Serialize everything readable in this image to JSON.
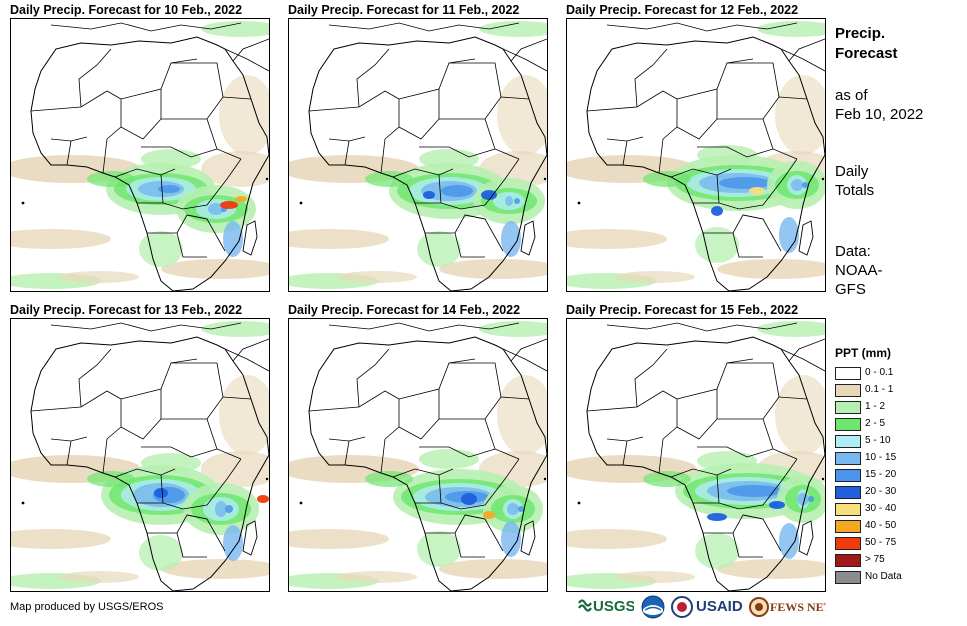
{
  "panels": [
    {
      "title": "Daily Precip. Forecast for 10 Feb., 2022"
    },
    {
      "title": "Daily Precip. Forecast for 11 Feb., 2022"
    },
    {
      "title": "Daily Precip. Forecast for 12 Feb., 2022"
    },
    {
      "title": "Daily Precip. Forecast for 13 Feb., 2022"
    },
    {
      "title": "Daily Precip. Forecast for 14 Feb., 2022"
    },
    {
      "title": "Daily Precip. Forecast for 15 Feb., 2022"
    }
  ],
  "sidebar": {
    "title_line1": "Precip.",
    "title_line2": "Forecast",
    "asof_line1": "as of",
    "asof_line2": "Feb 10, 2022",
    "totals_line1": "Daily",
    "totals_line2": "Totals",
    "source_line1": "Data:",
    "source_line2": "NOAA-",
    "source_line3": "GFS"
  },
  "legend": {
    "title": "PPT (mm)",
    "items": [
      {
        "label": "0 - 0.1",
        "color": "#ffffff"
      },
      {
        "label": "0.1 - 1",
        "color": "#e8d8bb"
      },
      {
        "label": "1 - 2",
        "color": "#b6f0b0"
      },
      {
        "label": "2 - 5",
        "color": "#6ee66e"
      },
      {
        "label": "5 - 10",
        "color": "#b0ecf5"
      },
      {
        "label": "10 - 15",
        "color": "#78b8f0"
      },
      {
        "label": "15 - 20",
        "color": "#4a94ea"
      },
      {
        "label": "20 - 30",
        "color": "#1f5fe0"
      },
      {
        "label": "30 - 40",
        "color": "#f7e07a"
      },
      {
        "label": "40 - 50",
        "color": "#f5a623"
      },
      {
        "label": "50 - 75",
        "color": "#f23a0c"
      },
      {
        "label": "> 75",
        "color": "#a11a1a"
      },
      {
        "label": "No Data",
        "color": "#8c8c8c"
      }
    ]
  },
  "footer": {
    "credit": "Map produced by USGS/EROS"
  },
  "logos": {
    "usgs": "USGS",
    "noaa": "NOAA",
    "usaid": "USAID",
    "fewsnet": "FEWS NET"
  }
}
